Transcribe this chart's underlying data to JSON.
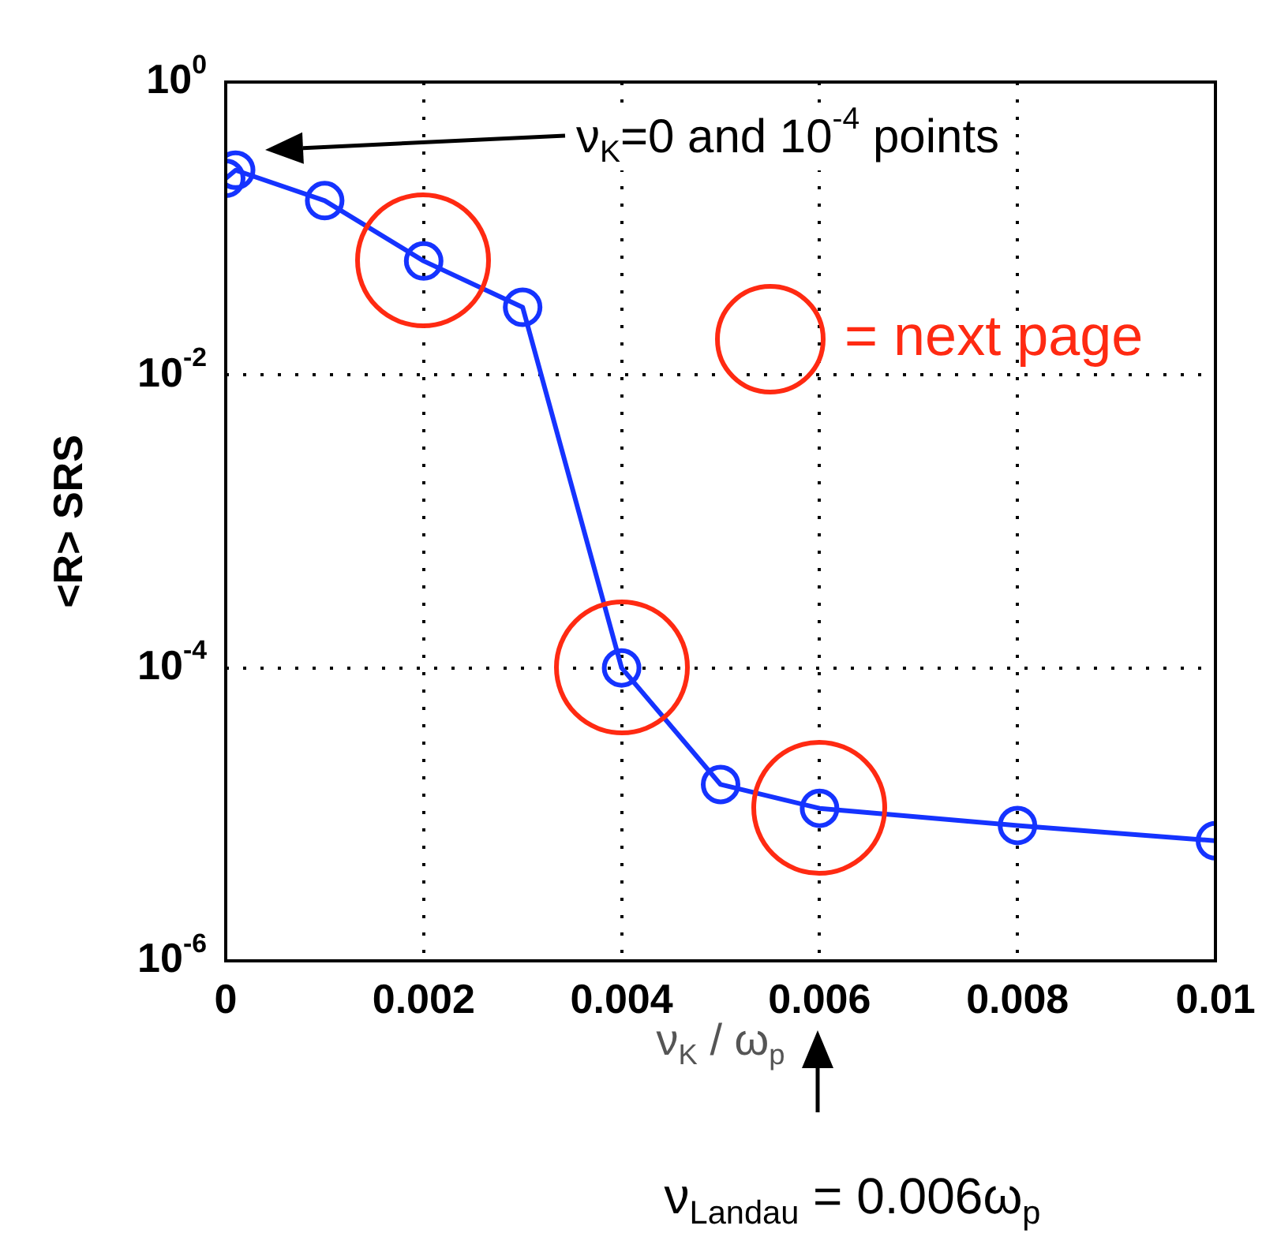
{
  "chart_data": {
    "type": "line",
    "xlabel": "ν$_{K}$ / ω$_{p}$",
    "ylabel": "<R> SRS",
    "x": [
      0,
      0.0001,
      0.001,
      0.002,
      0.003,
      0.004,
      0.005,
      0.006,
      0.008,
      0.01
    ],
    "series": [
      {
        "color": "#1533ff",
        "values": [
          0.22,
          0.25,
          0.155,
          0.06,
          0.029,
          0.0001,
          1.6e-05,
          1.1e-05,
          8.4e-06,
          6.6e-06
        ]
      }
    ],
    "log": "y",
    "xlim": [
      0,
      0.01
    ],
    "ylim": [
      1e-06,
      1
    ],
    "xticks": [
      0,
      0.002,
      0.004,
      0.006,
      0.008,
      0.01
    ],
    "yticks": [
      {
        "value": 1e-06,
        "label": "10$^{-6}$"
      },
      {
        "value": 0.0001,
        "label": "10$^{-4}$"
      },
      {
        "value": 0.01,
        "label": "10$^{-2}$"
      },
      {
        "value": 1,
        "label": "10$^{0}$"
      }
    ],
    "grid": true,
    "marker": "circle",
    "line_style": "solid",
    "legend": false,
    "annotations": [
      "ν$_{K}$=0 and 10$^{-4}$ points",
      "= next page",
      "ν$_{Landau}$ = 0.006ω$_{p}$"
    ]
  }
}
